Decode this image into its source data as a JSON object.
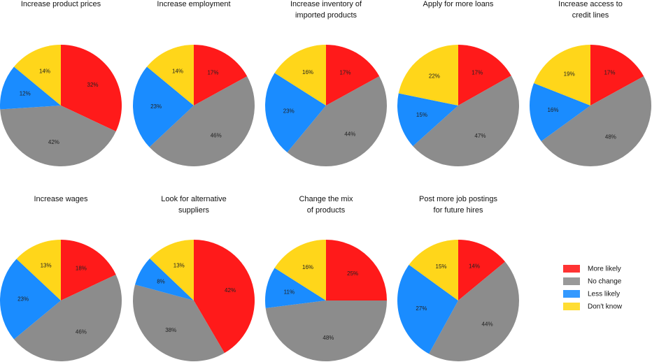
{
  "chart_data": [
    {
      "type": "pie",
      "title": [
        "Increase product prices"
      ],
      "categories": [
        "More likely",
        "No change",
        "Less likely",
        "Don't know"
      ],
      "values": [
        32,
        42,
        12,
        14
      ]
    },
    {
      "type": "pie",
      "title": [
        "Increase employment"
      ],
      "categories": [
        "More likely",
        "No change",
        "Less likely",
        "Don't know"
      ],
      "values": [
        17,
        46,
        23,
        14
      ]
    },
    {
      "type": "pie",
      "title": [
        "Increase inventory of",
        "imported products"
      ],
      "categories": [
        "More likely",
        "No change",
        "Less likely",
        "Don't know"
      ],
      "values": [
        17,
        44,
        23,
        16
      ]
    },
    {
      "type": "pie",
      "title": [
        "Apply for more loans"
      ],
      "categories": [
        "More likely",
        "No change",
        "Less likely",
        "Don't know"
      ],
      "values": [
        17,
        47,
        15,
        22
      ]
    },
    {
      "type": "pie",
      "title": [
        "Increase access to",
        "credit lines"
      ],
      "categories": [
        "More likely",
        "No change",
        "Less likely",
        "Don't know"
      ],
      "values": [
        17,
        48,
        16,
        19
      ]
    },
    {
      "type": "pie",
      "title": [
        "Increase wages"
      ],
      "categories": [
        "More likely",
        "No change",
        "Less likely",
        "Don't know"
      ],
      "values": [
        18,
        46,
        23,
        13
      ]
    },
    {
      "type": "pie",
      "title": [
        "Look for alternative",
        "suppliers"
      ],
      "categories": [
        "More likely",
        "No change",
        "Less likely",
        "Don't know"
      ],
      "values": [
        42,
        38,
        8,
        13
      ]
    },
    {
      "type": "pie",
      "title": [
        "Change the mix",
        "of products"
      ],
      "categories": [
        "More likely",
        "No change",
        "Less likely",
        "Don't know"
      ],
      "values": [
        25,
        48,
        11,
        16
      ]
    },
    {
      "type": "pie",
      "title": [
        "Post more job postings",
        "for future hires"
      ],
      "categories": [
        "More likely",
        "No change",
        "Less likely",
        "Don't know"
      ],
      "values": [
        14,
        44,
        27,
        15
      ]
    }
  ],
  "legend": {
    "placement": "right",
    "items": [
      {
        "label": "More likely",
        "color": "#ff1a1a"
      },
      {
        "label": "No change",
        "color": "#8c8c8c"
      },
      {
        "label": "Less likely",
        "color": "#1a8cff"
      },
      {
        "label": "Don't know",
        "color": "#ffd61a"
      }
    ]
  },
  "colors": [
    "#ff1a1a",
    "#8c8c8c",
    "#1a8cff",
    "#ffd61a"
  ]
}
